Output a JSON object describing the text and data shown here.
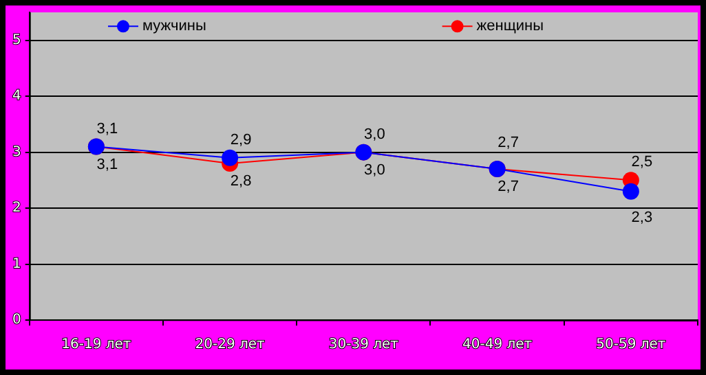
{
  "chart_data": {
    "type": "line",
    "categories": [
      "16-19 лет",
      "20-29 лет",
      "30-39 лет",
      "40-49 лет",
      "50-59 лет"
    ],
    "series": [
      {
        "name": "мужчины",
        "color": "#0000ff",
        "values": [
          3.1,
          2.9,
          3.0,
          2.7,
          2.3
        ],
        "value_labels": [
          "3,1",
          "2,9",
          "3,0",
          "2,7",
          "2,3"
        ]
      },
      {
        "name": "женщины",
        "color": "#ff0000",
        "values": [
          3.1,
          2.8,
          3.0,
          2.7,
          2.5
        ],
        "value_labels": [
          "3,1",
          "2,8",
          "3,0",
          "2,7",
          "2,5"
        ]
      }
    ],
    "ylim": [
      0,
      5.5
    ],
    "yticks": [
      0,
      1,
      2,
      3,
      4,
      5
    ],
    "grid": "y",
    "legend": "top",
    "marker": "circle"
  }
}
